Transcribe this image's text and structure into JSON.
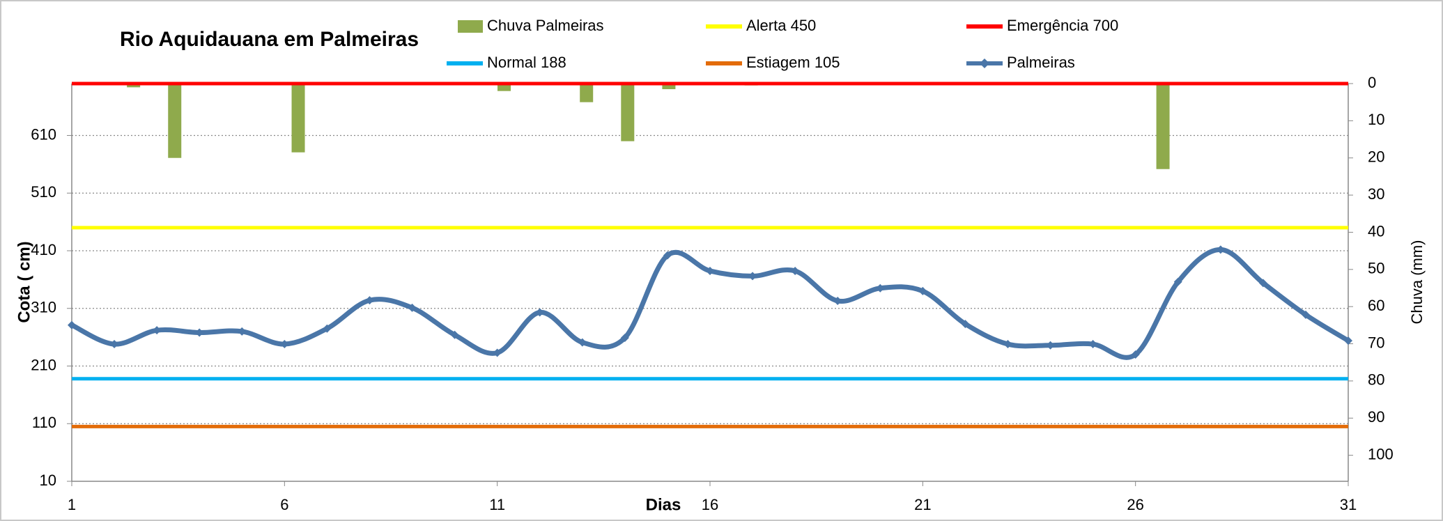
{
  "chart_data": {
    "type": "line",
    "title": "Rio Aquidauana em Palmeiras",
    "x_label": "Dias",
    "y_label": "Cota  ( cm)",
    "y2_label": "Chuva (mm)",
    "x": [
      1,
      2,
      3,
      4,
      5,
      6,
      7,
      8,
      9,
      10,
      11,
      12,
      13,
      14,
      15,
      16,
      17,
      18,
      19,
      20,
      21,
      22,
      23,
      24,
      25,
      26,
      27,
      28,
      29,
      30,
      31
    ],
    "xlim": [
      1,
      31
    ],
    "xticks": [
      1,
      6,
      11,
      16,
      21,
      26,
      31
    ],
    "ylim": [
      10,
      700
    ],
    "yticks": [
      10,
      110,
      210,
      310,
      410,
      510,
      610
    ],
    "y2lim": [
      0,
      107
    ],
    "y2ticks": [
      0,
      10,
      20,
      30,
      40,
      50,
      60,
      70,
      80,
      90,
      100
    ],
    "y2_inverted": true,
    "grid": true,
    "series": [
      {
        "name": "Chuva  Palmeiras",
        "type": "bar",
        "axis": "y2",
        "color": "#8faa4c",
        "values": [
          0,
          1,
          20,
          0,
          0,
          18.5,
          0,
          0,
          0,
          0,
          2,
          0,
          5,
          15.5,
          1.5,
          0,
          0.5,
          0,
          0,
          0,
          0,
          0,
          0,
          0,
          0,
          0,
          23,
          0,
          0,
          0,
          0
        ]
      },
      {
        "name": "Alerta 450",
        "type": "hline",
        "color": "#ffff00",
        "value": 450
      },
      {
        "name": "Emergência 700",
        "type": "hline",
        "color": "#ff0000",
        "value": 700
      },
      {
        "name": "Normal  188",
        "type": "hline",
        "color": "#00b0f0",
        "value": 188
      },
      {
        "name": "Estiagem 105",
        "type": "hline",
        "color": "#e36c09",
        "value": 105
      },
      {
        "name": "Palmeiras",
        "type": "line",
        "color": "#4a76a8",
        "values": [
          281,
          248,
          272,
          268,
          270,
          248,
          275,
          324,
          311,
          264,
          233,
          303,
          251,
          259,
          402,
          375,
          366,
          375,
          323,
          345,
          340,
          283,
          248,
          246,
          248,
          230,
          356,
          412,
          354,
          299,
          254
        ]
      }
    ]
  }
}
